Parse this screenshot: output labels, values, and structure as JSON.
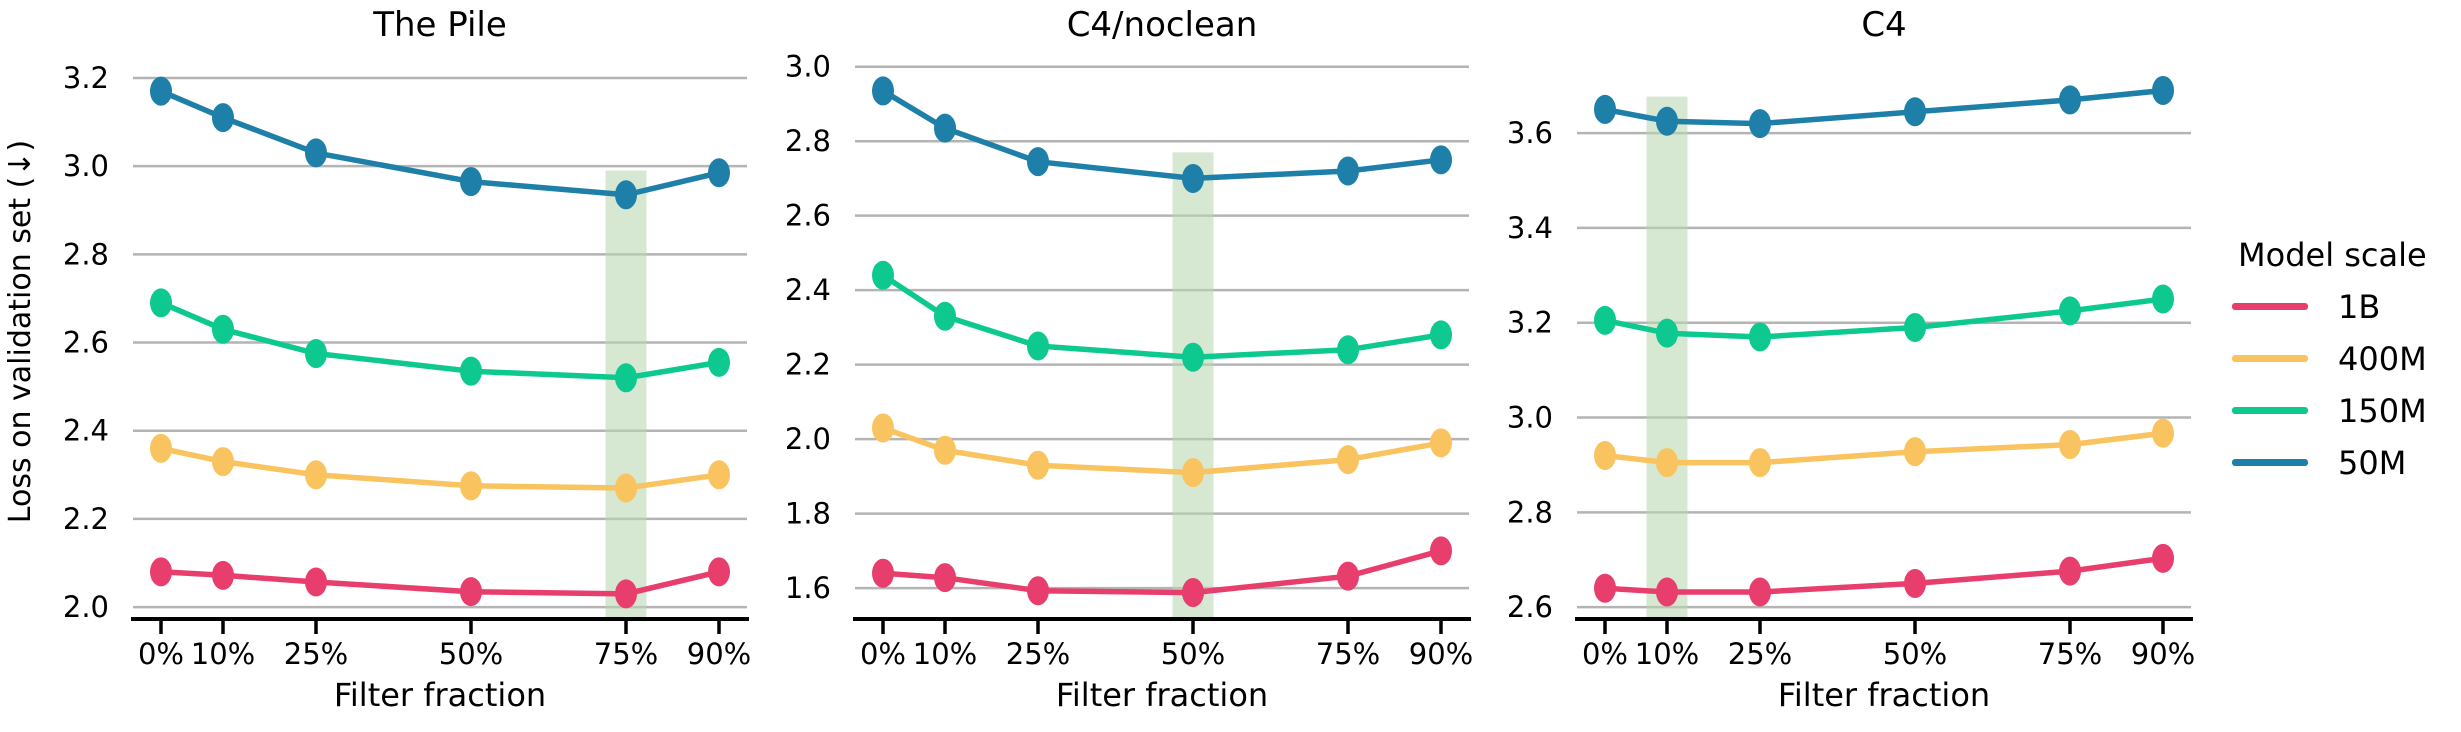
{
  "chart_data": {
    "type": "line",
    "ylabel": "Loss on validation set (↓)",
    "x_percent": [
      0,
      10,
      25,
      50,
      75,
      90
    ],
    "x_tick_labels": [
      "0%",
      "10%",
      "25%",
      "50%",
      "75%",
      "90%"
    ],
    "grid": true,
    "gridline_color": "#b4b4b4",
    "spine_color": "#000000",
    "highlight_color": "#d4e6ce",
    "colors": {
      "1B": "#e83e6d",
      "400M": "#f9c45f",
      "150M": "#0ec98f",
      "50M": "#1e7fa8"
    },
    "legend": {
      "title": "Model scale",
      "position": "right",
      "entries": [
        {
          "name": "1B",
          "color": "#e83e6d"
        },
        {
          "name": "400M",
          "color": "#f9c45f"
        },
        {
          "name": "150M",
          "color": "#0ec98f"
        },
        {
          "name": "50M",
          "color": "#1e7fa8"
        }
      ]
    },
    "panels": [
      {
        "title": "The Pile",
        "xlabel": "Filter fraction",
        "ylim": [
          1.973,
          3.277
        ],
        "yticks": [
          2.0,
          2.2,
          2.4,
          2.6,
          2.8,
          3.0,
          3.2
        ],
        "highlight_x": 75,
        "highlight_top": 2.99,
        "series": [
          {
            "name": "1B",
            "values": [
              2.08,
              2.072,
              2.057,
              2.035,
              2.03,
              2.08
            ]
          },
          {
            "name": "400M",
            "values": [
              2.36,
              2.33,
              2.3,
              2.275,
              2.27,
              2.3
            ]
          },
          {
            "name": "150M",
            "values": [
              2.69,
              2.63,
              2.575,
              2.535,
              2.52,
              2.555
            ]
          },
          {
            "name": "50M",
            "values": [
              3.17,
              3.11,
              3.03,
              2.965,
              2.935,
              2.985
            ]
          }
        ]
      },
      {
        "title": "C4/noclean",
        "xlabel": "Filter fraction",
        "ylim": [
          1.517,
          3.061
        ],
        "yticks": [
          1.6,
          1.8,
          2.0,
          2.2,
          2.4,
          2.6,
          2.8,
          3.0
        ],
        "highlight_x": 50,
        "highlight_top": 2.77,
        "series": [
          {
            "name": "1B",
            "values": [
              1.64,
              1.628,
              1.593,
              1.588,
              1.632,
              1.7
            ]
          },
          {
            "name": "400M",
            "values": [
              2.03,
              1.97,
              1.93,
              1.91,
              1.945,
              1.99
            ]
          },
          {
            "name": "150M",
            "values": [
              2.44,
              2.33,
              2.25,
              2.22,
              2.24,
              2.28
            ]
          },
          {
            "name": "50M",
            "values": [
              2.935,
              2.835,
              2.745,
              2.7,
              2.72,
              2.75
            ]
          }
        ]
      },
      {
        "title": "C4",
        "xlabel": "Filter fraction",
        "ylim": [
          2.575,
          3.788
        ],
        "yticks": [
          2.6,
          2.8,
          3.0,
          3.2,
          3.4,
          3.6
        ],
        "highlight_x": 10,
        "highlight_top": 3.677,
        "series": [
          {
            "name": "1B",
            "values": [
              2.64,
              2.632,
              2.632,
              2.65,
              2.676,
              2.703
            ]
          },
          {
            "name": "400M",
            "values": [
              2.92,
              2.905,
              2.905,
              2.928,
              2.943,
              2.967
            ]
          },
          {
            "name": "150M",
            "values": [
              3.205,
              3.178,
              3.17,
              3.19,
              3.225,
              3.25
            ]
          },
          {
            "name": "50M",
            "values": [
              3.65,
              3.625,
              3.62,
              3.645,
              3.67,
              3.69
            ]
          }
        ]
      }
    ]
  }
}
